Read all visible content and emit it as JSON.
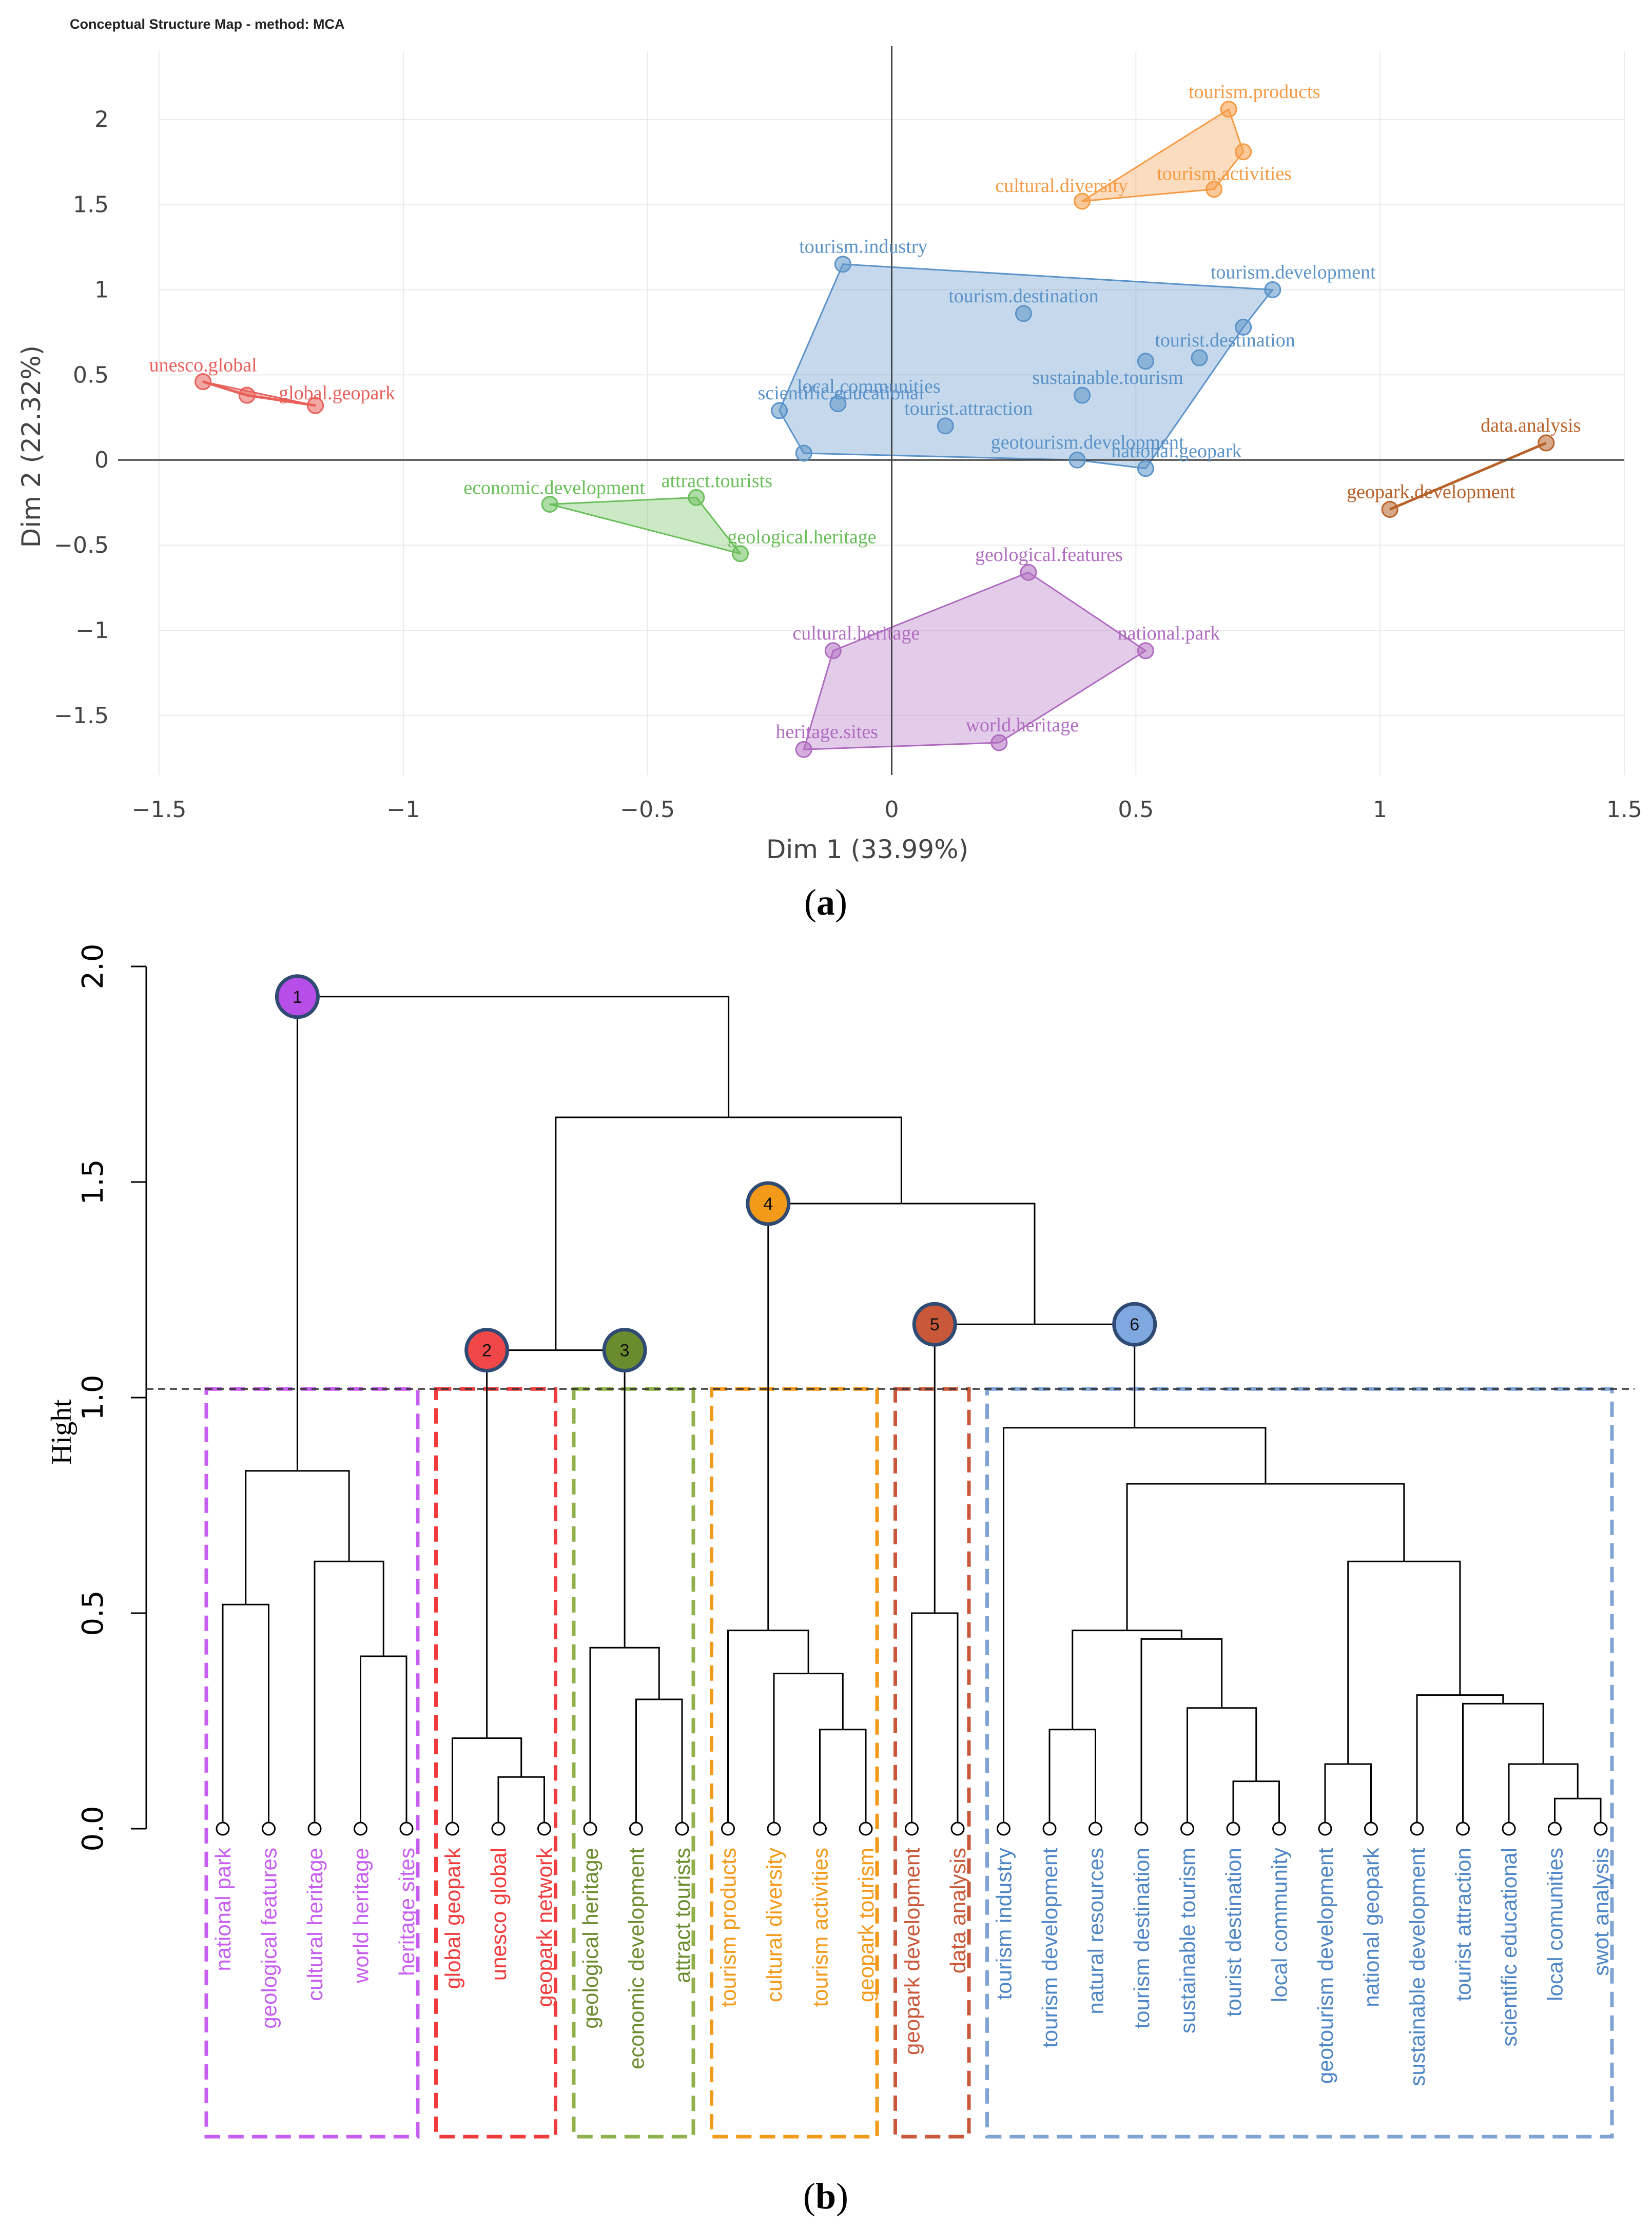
{
  "chart_data": [
    {
      "type": "scatter",
      "title": "Conceptual Structure Map - method: MCA",
      "xlabel": "Dim 1 (33.99%)",
      "ylabel": "Dim 2 (22.32%)",
      "xlim": [
        -1.5,
        1.5
      ],
      "ylim": [
        -1.85,
        2.4
      ],
      "xticks": [
        -1.5,
        -1,
        -0.5,
        0,
        0.5,
        1,
        1.5
      ],
      "xtick_labels": [
        "−1.5",
        "−1",
        "−0.5",
        "0",
        "0.5",
        "1",
        "1.5"
      ],
      "yticks": [
        -1.5,
        -1,
        -0.5,
        0,
        0.5,
        1,
        1.5,
        2
      ],
      "ytick_labels": [
        "−1.5",
        "−1",
        "−0.5",
        "0",
        "0.5",
        "1",
        "1.5",
        "2"
      ],
      "caption_label": "a",
      "clusters": [
        {
          "name": "cluster-red",
          "color": "#e8605a",
          "points": [
            {
              "label": "unesco.global",
              "x": -1.41,
              "y": 0.46
            },
            {
              "label": "",
              "x": -1.32,
              "y": 0.38
            },
            {
              "label": "global.geopark",
              "x": -1.18,
              "y": 0.32
            }
          ],
          "hull": [
            [
              -1.41,
              0.46
            ],
            [
              -1.32,
              0.38
            ],
            [
              -1.18,
              0.32
            ]
          ]
        },
        {
          "name": "cluster-green",
          "color": "#6abf5a",
          "points": [
            {
              "label": "economic.development",
              "x": -0.7,
              "y": -0.26
            },
            {
              "label": "attract.tourists",
              "x": -0.4,
              "y": -0.22
            },
            {
              "label": "geological.heritage",
              "x": -0.31,
              "y": -0.55
            }
          ],
          "hull": [
            [
              -0.7,
              -0.26
            ],
            [
              -0.4,
              -0.22
            ],
            [
              -0.31,
              -0.55
            ]
          ]
        },
        {
          "name": "cluster-orange",
          "color": "#f59b45",
          "points": [
            {
              "label": "tourism.products",
              "x": 0.69,
              "y": 2.06
            },
            {
              "label": "",
              "x": 0.72,
              "y": 1.81
            },
            {
              "label": "tourism.activities",
              "x": 0.66,
              "y": 1.59
            },
            {
              "label": "cultural.diversity",
              "x": 0.39,
              "y": 1.52
            }
          ],
          "hull": [
            [
              0.39,
              1.52
            ],
            [
              0.69,
              2.06
            ],
            [
              0.72,
              1.81
            ],
            [
              0.66,
              1.59
            ]
          ]
        },
        {
          "name": "cluster-blue",
          "color": "#5b93c9",
          "points": [
            {
              "label": "tourism.industry",
              "x": -0.1,
              "y": 1.15
            },
            {
              "label": "tourism.development",
              "x": 0.78,
              "y": 1.0
            },
            {
              "label": "tourism.destination",
              "x": 0.27,
              "y": 0.86
            },
            {
              "label": "",
              "x": 0.72,
              "y": 0.78
            },
            {
              "label": "tourist.destination",
              "x": 0.63,
              "y": 0.6
            },
            {
              "label": "",
              "x": 0.52,
              "y": 0.58
            },
            {
              "label": "sustainable.tourism",
              "x": 0.39,
              "y": 0.38
            },
            {
              "label": "local.communities",
              "x": -0.11,
              "y": 0.33
            },
            {
              "label": "scientific.educational",
              "x": -0.23,
              "y": 0.29
            },
            {
              "label": "tourist.attraction",
              "x": 0.11,
              "y": 0.2
            },
            {
              "label": "",
              "x": -0.18,
              "y": 0.04
            },
            {
              "label": "geotourism.development",
              "x": 0.38,
              "y": 0.0
            },
            {
              "label": "national.geopark",
              "x": 0.52,
              "y": -0.05
            }
          ],
          "hull": [
            [
              -0.1,
              1.15
            ],
            [
              0.78,
              1.0
            ],
            [
              0.72,
              0.78
            ],
            [
              0.52,
              -0.05
            ],
            [
              0.38,
              0.0
            ],
            [
              -0.18,
              0.04
            ],
            [
              -0.23,
              0.29
            ]
          ]
        },
        {
          "name": "cluster-brown",
          "color": "#b8622a",
          "points": [
            {
              "label": "data.analysis",
              "x": 1.34,
              "y": 0.1
            },
            {
              "label": "geopark.development",
              "x": 1.02,
              "y": -0.29
            }
          ],
          "hull": [
            [
              1.34,
              0.1
            ],
            [
              1.02,
              -0.29
            ]
          ]
        },
        {
          "name": "cluster-purple",
          "color": "#b06cc0",
          "points": [
            {
              "label": "geological.features",
              "x": 0.28,
              "y": -0.66
            },
            {
              "label": "national.park",
              "x": 0.52,
              "y": -1.12
            },
            {
              "label": "cultural.heritage",
              "x": -0.12,
              "y": -1.12
            },
            {
              "label": "world.heritage",
              "x": 0.22,
              "y": -1.66
            },
            {
              "label": "heritage.sites",
              "x": -0.18,
              "y": -1.7
            }
          ],
          "hull": [
            [
              0.28,
              -0.66
            ],
            [
              0.52,
              -1.12
            ],
            [
              0.22,
              -1.66
            ],
            [
              -0.18,
              -1.7
            ],
            [
              -0.12,
              -1.12
            ]
          ]
        }
      ]
    },
    {
      "type": "dendrogram",
      "ylabel": "Hight",
      "ylim": [
        0,
        2.0
      ],
      "yticks": [
        0,
        0.5,
        1,
        1.5,
        2
      ],
      "ytick_labels": [
        "0.0",
        "0.5",
        "1.0",
        "1.5",
        "2.0"
      ],
      "cut_height": 1.02,
      "caption_label": "b",
      "leaves": [
        {
          "label": "national park",
          "color": "#c75ef0"
        },
        {
          "label": "geological features",
          "color": "#c75ef0"
        },
        {
          "label": "cultural heritage",
          "color": "#c75ef0"
        },
        {
          "label": "world heritage",
          "color": "#c75ef0"
        },
        {
          "label": "heritage sites",
          "color": "#c75ef0"
        },
        {
          "label": "global geopark",
          "color": "#ef3b3b"
        },
        {
          "label": "unesco global",
          "color": "#ef3b3b"
        },
        {
          "label": "geopark network",
          "color": "#ef3b3b"
        },
        {
          "label": "geological heritage",
          "color": "#6b8c2e"
        },
        {
          "label": "economic development",
          "color": "#6b8c2e"
        },
        {
          "label": "attract tourists",
          "color": "#6b8c2e"
        },
        {
          "label": "tourism products",
          "color": "#f39a1b"
        },
        {
          "label": "cultural diversity",
          "color": "#f39a1b"
        },
        {
          "label": "tourism activities",
          "color": "#f39a1b"
        },
        {
          "label": "geopark tourism",
          "color": "#f39a1b"
        },
        {
          "label": "geopark development",
          "color": "#c9583a"
        },
        {
          "label": "data analysis",
          "color": "#c9583a"
        },
        {
          "label": "tourism industry",
          "color": "#4f86c6"
        },
        {
          "label": "tourism development",
          "color": "#4f86c6"
        },
        {
          "label": "natural resources",
          "color": "#4f86c6"
        },
        {
          "label": "tourism destination",
          "color": "#4f86c6"
        },
        {
          "label": "sustainable tourism",
          "color": "#4f86c6"
        },
        {
          "label": "tourist destination",
          "color": "#4f86c6"
        },
        {
          "label": "local community",
          "color": "#4f86c6"
        },
        {
          "label": "geotourism development",
          "color": "#4f86c6"
        },
        {
          "label": "national geopark",
          "color": "#4f86c6"
        },
        {
          "label": "sustainable development",
          "color": "#4f86c6"
        },
        {
          "label": "tourist attraction",
          "color": "#4f86c6"
        },
        {
          "label": "scientific educational",
          "color": "#4f86c6"
        },
        {
          "label": "local comunities",
          "color": "#4f86c6"
        },
        {
          "label": "swot analysis",
          "color": "#4f86c6"
        }
      ],
      "merges": [
        {
          "id": "m1",
          "a": 0,
          "b": 1,
          "h": 0.52
        },
        {
          "id": "m2",
          "a": 3,
          "b": 4,
          "h": 0.4
        },
        {
          "id": "m3",
          "a": 2,
          "b": "m2",
          "h": 0.62
        },
        {
          "id": "m4",
          "a": "m1",
          "b": "m3",
          "h": 0.83
        },
        {
          "id": "m5",
          "a": 6,
          "b": 7,
          "h": 0.12
        },
        {
          "id": "m6",
          "a": 5,
          "b": "m5",
          "h": 0.21
        },
        {
          "id": "m7",
          "a": 9,
          "b": 10,
          "h": 0.3
        },
        {
          "id": "m8",
          "a": 8,
          "b": "m7",
          "h": 0.42
        },
        {
          "id": "m9",
          "a": "m6",
          "b": "m8",
          "h": 1.11
        },
        {
          "id": "m10",
          "a": 13,
          "b": 14,
          "h": 0.23
        },
        {
          "id": "m11",
          "a": 12,
          "b": "m10",
          "h": 0.36
        },
        {
          "id": "m12",
          "a": 11,
          "b": "m11",
          "h": 0.46
        },
        {
          "id": "m13",
          "a": 15,
          "b": 16,
          "h": 0.5
        },
        {
          "id": "m14",
          "a": 18,
          "b": 19,
          "h": 0.23
        },
        {
          "id": "m15",
          "a": 22,
          "b": 23,
          "h": 0.11
        },
        {
          "id": "m16",
          "a": 21,
          "b": "m15",
          "h": 0.28
        },
        {
          "id": "m17",
          "a": 20,
          "b": "m16",
          "h": 0.44
        },
        {
          "id": "m18",
          "a": "m14",
          "b": "m17",
          "h": 0.46
        },
        {
          "id": "m19",
          "a": 24,
          "b": 25,
          "h": 0.15
        },
        {
          "id": "m20",
          "a": 29,
          "b": 30,
          "h": 0.07
        },
        {
          "id": "m21",
          "a": 28,
          "b": "m20",
          "h": 0.15
        },
        {
          "id": "m22",
          "a": 27,
          "b": "m21",
          "h": 0.29
        },
        {
          "id": "m23",
          "a": 26,
          "b": "m22",
          "h": 0.31
        },
        {
          "id": "m24",
          "a": "m19",
          "b": "m23",
          "h": 0.62
        },
        {
          "id": "m25",
          "a": "m18",
          "b": "m24",
          "h": 0.8
        },
        {
          "id": "m26",
          "a": 17,
          "b": "m25",
          "h": 0.93
        },
        {
          "id": "m27",
          "a": "m13",
          "b": "m26",
          "h": 1.17
        },
        {
          "id": "m28",
          "a": "m12",
          "b": "m27",
          "h": 1.45
        },
        {
          "id": "m29",
          "a": "m9",
          "b": "m28",
          "h": 1.65
        },
        {
          "id": "m30",
          "a": "m4",
          "b": "m29",
          "h": 1.93
        }
      ],
      "clusters": [
        {
          "number": "1",
          "color": "#c75ef0",
          "fill": "#b84ee8",
          "node": "m4",
          "first": 0,
          "last": 4
        },
        {
          "number": "2",
          "color": "#ef3b3b",
          "fill": "#f04848",
          "node": "m6",
          "first": 5,
          "last": 7
        },
        {
          "number": "3",
          "color": "#8fb04a",
          "fill": "#6b8c2e",
          "node": "m8",
          "first": 8,
          "last": 10
        },
        {
          "number": "4",
          "color": "#f39a1b",
          "fill": "#f39a1b",
          "node": "m12",
          "first": 11,
          "last": 14
        },
        {
          "number": "5",
          "color": "#c9583a",
          "fill": "#c9583a",
          "node": "m13",
          "first": 15,
          "last": 16
        },
        {
          "number": "6",
          "color": "#7fa3d4",
          "fill": "#7fa8e0",
          "node": "m26",
          "first": 17,
          "last": 30
        }
      ]
    }
  ]
}
